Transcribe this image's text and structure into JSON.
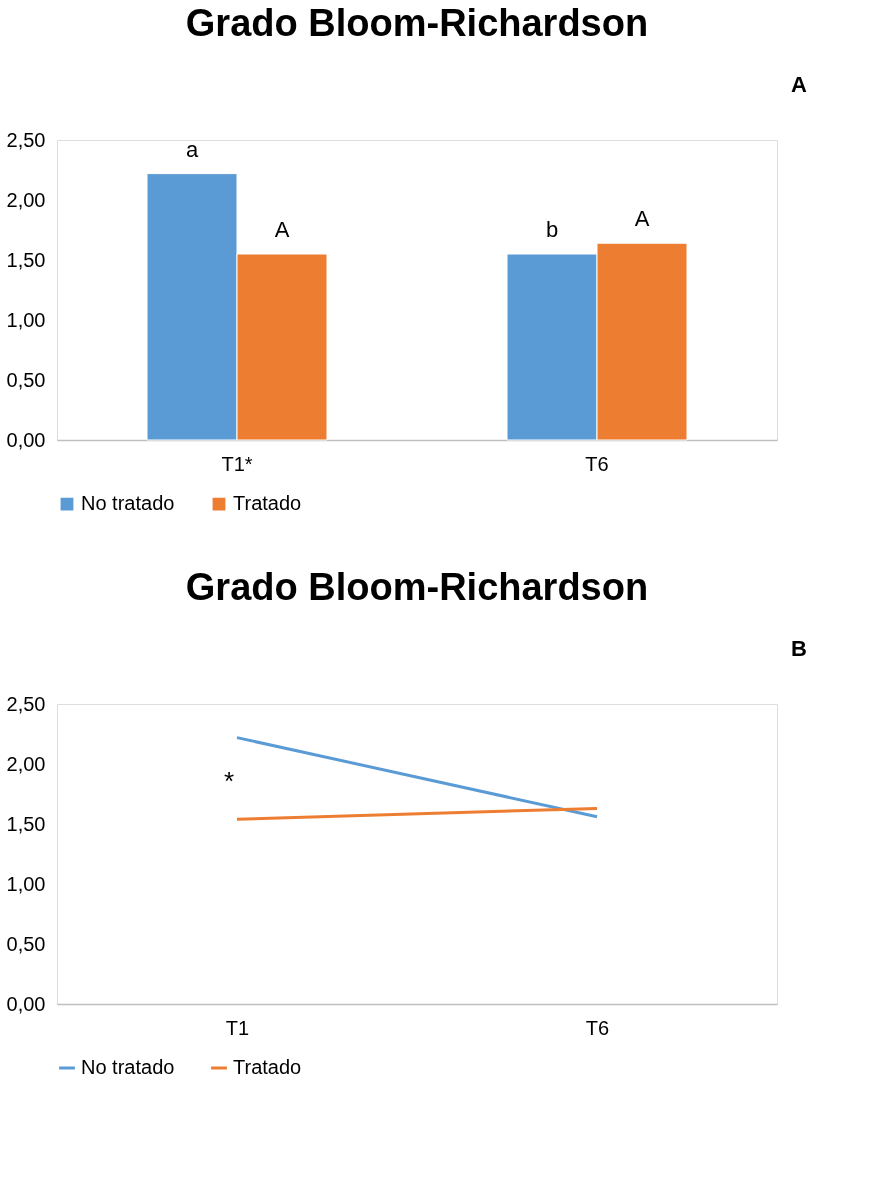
{
  "chart_data": [
    {
      "type": "bar",
      "title": "Grado Bloom-Richardson",
      "categories": [
        "T1*",
        "T6"
      ],
      "series": [
        {
          "name": "No tratado",
          "color": "#5b9bd5",
          "values": [
            2.22,
            1.55
          ]
        },
        {
          "name": "Tratado",
          "color": "#ed7d31",
          "values": [
            1.55,
            1.64
          ]
        }
      ],
      "ylim": [
        0,
        2.5
      ],
      "yticks": [
        {
          "value": 0,
          "label": "0,00"
        },
        {
          "value": 0.5,
          "label": "0,50"
        },
        {
          "value": 1,
          "label": "1,00"
        },
        {
          "value": 1.5,
          "label": "1,50"
        },
        {
          "value": 2,
          "label": "2,00"
        },
        {
          "value": 2.5,
          "label": "2,50"
        }
      ],
      "grid": false,
      "legend": "bottom",
      "annotations": [
        "A",
        {
          "text": "a",
          "x": "T1*",
          "y": 2.22
        },
        {
          "text": "A",
          "x": "T1*",
          "y": 1.55
        },
        {
          "text": "b",
          "x": "T6",
          "y": 1.55
        },
        {
          "text": "A",
          "x": "T6",
          "y": 1.64
        }
      ]
    },
    {
      "type": "line",
      "title": "Grado Bloom-Richardson",
      "categories": [
        "T1",
        "T6"
      ],
      "series": [
        {
          "name": "No tratado",
          "color": "#5b9bd5",
          "values": [
            2.22,
            1.56
          ]
        },
        {
          "name": "Tratado",
          "color": "#ed7d31",
          "values": [
            1.54,
            1.63
          ]
        }
      ],
      "ylim": [
        0,
        2.5
      ],
      "yticks": [
        {
          "value": 0,
          "label": "0,00"
        },
        {
          "value": 0.5,
          "label": "0,50"
        },
        {
          "value": 1,
          "label": "1,00"
        },
        {
          "value": 1.5,
          "label": "1,50"
        },
        {
          "value": 2,
          "label": "2,00"
        },
        {
          "value": 2.5,
          "label": "2,50"
        }
      ],
      "grid": false,
      "legend": "bottom",
      "marker": "none",
      "annotations": [
        "B",
        "*"
      ]
    }
  ]
}
